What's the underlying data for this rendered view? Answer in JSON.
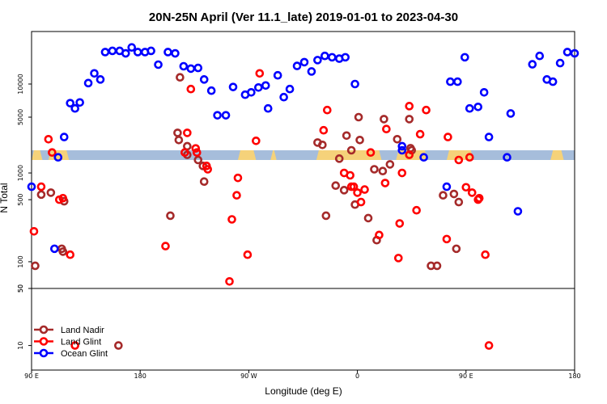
{
  "chart_data": {
    "type": "scatter",
    "title": "20N-25N April (Ver 11.1_late)   2019-01-01 to 2023-04-30",
    "xlabel": "Longitude (deg E)",
    "ylabel": "N Total",
    "x_ticks": [
      {
        "value": 90,
        "label": "90 E"
      },
      {
        "value": 180,
        "label": "180"
      },
      {
        "value": 270,
        "label": "90 W"
      },
      {
        "value": 360,
        "label": "0"
      },
      {
        "value": 450,
        "label": "90 E"
      },
      {
        "value": 540,
        "label": "180"
      }
    ],
    "xlim": [
      90,
      540
    ],
    "y_scale": "log",
    "panels": [
      {
        "name": "top",
        "ylim": [
          2500,
          30000
        ],
        "ticks": [
          {
            "value": 5000,
            "label": "5000"
          },
          {
            "value": 10000,
            "label": "10000"
          }
        ]
      },
      {
        "name": "middle",
        "ylim": [
          50,
          1400
        ],
        "ticks": [
          {
            "value": 50,
            "label": "50"
          },
          {
            "value": 100,
            "label": "100"
          },
          {
            "value": 500,
            "label": "500"
          },
          {
            "value": 1000,
            "label": "1000"
          }
        ]
      },
      {
        "name": "bottom",
        "ylim": [
          5,
          50
        ],
        "ticks": [
          {
            "value": 10,
            "label": "10"
          },
          {
            "value": 50,
            "label": "50"
          }
        ]
      }
    ],
    "land_mask_colors": {
      "ocean": "#a6bddb",
      "land": "#f5d27a"
    },
    "legend": {
      "placement": "bottom-left"
    },
    "series": [
      {
        "name": "Land Nadir",
        "color": "#a52a2a",
        "points": [
          [
            93,
            90
          ],
          [
            98,
            570
          ],
          [
            106,
            600
          ],
          [
            117,
            480
          ],
          [
            116,
            130
          ],
          [
            115,
            140
          ],
          [
            162,
            10
          ],
          [
            205,
            330
          ],
          [
            212,
            3100
          ],
          [
            211,
            3600
          ],
          [
            213,
            11500
          ],
          [
            219,
            1600
          ],
          [
            219,
            2000
          ],
          [
            228,
            1400
          ],
          [
            232,
            1200
          ],
          [
            233,
            800
          ],
          [
            327,
            2200
          ],
          [
            331,
            2800
          ],
          [
            334,
            330
          ],
          [
            342,
            720
          ],
          [
            345,
            1450
          ],
          [
            349,
            640
          ],
          [
            351,
            3400
          ],
          [
            355,
            1800
          ],
          [
            358,
            440
          ],
          [
            361,
            5000
          ],
          [
            362,
            3100
          ],
          [
            369,
            310
          ],
          [
            374,
            1100
          ],
          [
            376,
            175
          ],
          [
            381,
            1050
          ],
          [
            382,
            4800
          ],
          [
            387,
            1250
          ],
          [
            393,
            2400
          ],
          [
            403,
            4800
          ],
          [
            404,
            1900
          ],
          [
            405,
            1800
          ],
          [
            421,
            90
          ],
          [
            426,
            90
          ],
          [
            431,
            560
          ],
          [
            440,
            580
          ],
          [
            444,
            470
          ],
          [
            442,
            140
          ]
        ]
      },
      {
        "name": "Land Glint",
        "color": "#ff0000",
        "points": [
          [
            92,
            220
          ],
          [
            98,
            700
          ],
          [
            104,
            2400
          ],
          [
            107,
            1700
          ],
          [
            113,
            500
          ],
          [
            116,
            520
          ],
          [
            122,
            120
          ],
          [
            126,
            10
          ],
          [
            201,
            150
          ],
          [
            217,
            1700
          ],
          [
            219,
            3600
          ],
          [
            222,
            9000
          ],
          [
            226,
            2600
          ],
          [
            227,
            1700
          ],
          [
            235,
            1200
          ],
          [
            236,
            1100
          ],
          [
            254,
            60
          ],
          [
            256,
            300
          ],
          [
            260,
            560
          ],
          [
            261,
            880
          ],
          [
            269,
            120
          ],
          [
            276,
            2300
          ],
          [
            279,
            12500
          ],
          [
            332,
            3800
          ],
          [
            335,
            5800
          ],
          [
            349,
            1000
          ],
          [
            354,
            940
          ],
          [
            355,
            700
          ],
          [
            357,
            700
          ],
          [
            360,
            600
          ],
          [
            363,
            470
          ],
          [
            366,
            650
          ],
          [
            371,
            1700
          ],
          [
            378,
            200
          ],
          [
            383,
            770
          ],
          [
            384,
            3900
          ],
          [
            394,
            110
          ],
          [
            395,
            270
          ],
          [
            397,
            1000
          ],
          [
            403,
            6300
          ],
          [
            403,
            1600
          ],
          [
            409,
            380
          ],
          [
            412,
            3500
          ],
          [
            417,
            5800
          ],
          [
            434,
            180
          ],
          [
            435,
            3300
          ],
          [
            444,
            1400
          ],
          [
            450,
            690
          ],
          [
            453,
            1500
          ],
          [
            455,
            600
          ],
          [
            460,
            500
          ],
          [
            461,
            520
          ],
          [
            466,
            120
          ],
          [
            469,
            10
          ]
        ]
      },
      {
        "name": "Ocean Glint",
        "color": "#0000ff",
        "points": [
          [
            90,
            700
          ],
          [
            109,
            140
          ],
          [
            112,
            1500
          ],
          [
            117,
            3300
          ],
          [
            122,
            6700
          ],
          [
            126,
            6000
          ],
          [
            130,
            6800
          ],
          [
            137,
            10200
          ],
          [
            142,
            12500
          ],
          [
            147,
            11000
          ],
          [
            151,
            19500
          ],
          [
            157,
            20000
          ],
          [
            163,
            20000
          ],
          [
            168,
            19000
          ],
          [
            173,
            21500
          ],
          [
            178,
            19500
          ],
          [
            184,
            19500
          ],
          [
            189,
            20000
          ],
          [
            195,
            15000
          ],
          [
            203,
            19500
          ],
          [
            209,
            19000
          ],
          [
            216,
            14500
          ],
          [
            222,
            13800
          ],
          [
            228,
            14000
          ],
          [
            233,
            11000
          ],
          [
            239,
            8700
          ],
          [
            244,
            5200
          ],
          [
            251,
            5200
          ],
          [
            257,
            9400
          ],
          [
            267,
            8000
          ],
          [
            272,
            8400
          ],
          [
            278,
            9300
          ],
          [
            284,
            9700
          ],
          [
            286,
            6000
          ],
          [
            294,
            12000
          ],
          [
            299,
            7600
          ],
          [
            304,
            9000
          ],
          [
            310,
            14600
          ],
          [
            316,
            15800
          ],
          [
            322,
            13000
          ],
          [
            327,
            16500
          ],
          [
            333,
            18000
          ],
          [
            339,
            17500
          ],
          [
            345,
            17000
          ],
          [
            350,
            17500
          ],
          [
            358,
            10000
          ],
          [
            397,
            2000
          ],
          [
            397,
            1800
          ],
          [
            415,
            1500
          ],
          [
            434,
            700
          ],
          [
            437,
            10500
          ],
          [
            443,
            10500
          ],
          [
            449,
            17500
          ],
          [
            453,
            6000
          ],
          [
            460,
            6200
          ],
          [
            465,
            8400
          ],
          [
            469,
            3300
          ],
          [
            484,
            1500
          ],
          [
            487,
            5400
          ],
          [
            493,
            370
          ],
          [
            505,
            15100
          ],
          [
            511,
            18000
          ],
          [
            517,
            11000
          ],
          [
            522,
            10500
          ],
          [
            528,
            15500
          ],
          [
            534,
            19500
          ],
          [
            540,
            19000
          ]
        ]
      }
    ]
  }
}
